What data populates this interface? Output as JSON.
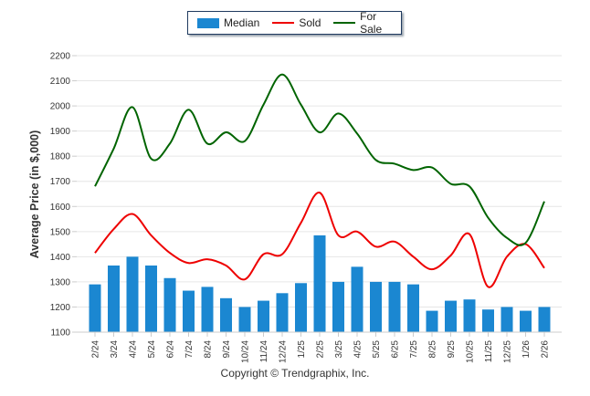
{
  "chart_data": {
    "type": "bar",
    "title": "",
    "xlabel": "",
    "ylabel": "Average Price (in $,000)",
    "ylim": [
      1100,
      2200
    ],
    "yticks": [
      1100,
      1200,
      1300,
      1400,
      1500,
      1600,
      1700,
      1800,
      1900,
      2000,
      2100,
      2200
    ],
    "grid": true,
    "legend_position": "top-center",
    "categories": [
      "2/24",
      "3/24",
      "4/24",
      "5/24",
      "6/24",
      "7/24",
      "8/24",
      "9/24",
      "10/24",
      "11/24",
      "12/24",
      "1/25",
      "2/25",
      "3/25",
      "4/25",
      "5/25",
      "6/25",
      "7/25",
      "8/25",
      "9/25",
      "10/25",
      "11/25",
      "12/25",
      "1/26",
      "2/26"
    ],
    "series": [
      {
        "name": "Median",
        "type": "bar",
        "color": "#1b87d1",
        "values": [
          1290,
          1365,
          1400,
          1365,
          1315,
          1265,
          1280,
          1235,
          1200,
          1225,
          1255,
          1295,
          1485,
          1300,
          1360,
          1300,
          1300,
          1290,
          1185,
          1225,
          1230,
          1190,
          1200,
          1185,
          1200
        ]
      },
      {
        "name": "Sold",
        "type": "line",
        "color": "#ee0000",
        "values": [
          1415,
          1510,
          1570,
          1485,
          1415,
          1375,
          1390,
          1365,
          1310,
          1410,
          1410,
          1535,
          1655,
          1485,
          1500,
          1440,
          1460,
          1400,
          1350,
          1405,
          1490,
          1280,
          1400,
          1450,
          1355
        ]
      },
      {
        "name": "For Sale",
        "type": "line",
        "color": "#006400",
        "values": [
          1680,
          1830,
          1995,
          1790,
          1850,
          1985,
          1850,
          1895,
          1860,
          2005,
          2125,
          2005,
          1895,
          1970,
          1890,
          1785,
          1770,
          1745,
          1755,
          1690,
          1680,
          1555,
          1475,
          1455,
          1620
        ]
      }
    ]
  },
  "legend": {
    "items": [
      {
        "label": "Median",
        "kind": "bar",
        "color": "#1b87d1"
      },
      {
        "label": "Sold",
        "kind": "line",
        "color": "#ee0000"
      },
      {
        "label": "For Sale",
        "kind": "line",
        "color": "#006400"
      }
    ]
  },
  "footer": {
    "copyright": "Copyright © Trendgraphix, Inc."
  }
}
